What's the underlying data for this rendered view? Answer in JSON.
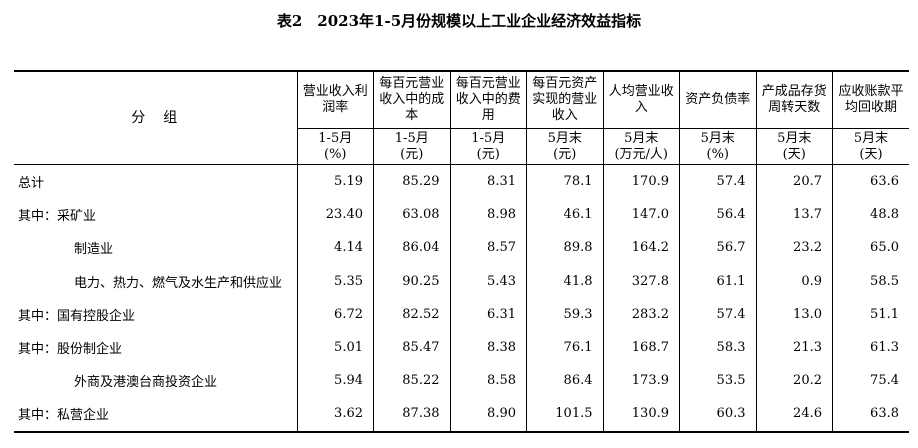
{
  "title": "表2　2023年1-5月份规模以上工业企业经济效益指标",
  "group_header": "分　组",
  "columns": [
    {
      "name": "营业收入利润率",
      "period": "1-5月",
      "unit": "(%)"
    },
    {
      "name": "每百元营业收入中的成本",
      "period": "1-5月",
      "unit": "(元)"
    },
    {
      "name": "每百元营业收入中的费用",
      "period": "1-5月",
      "unit": "(元)"
    },
    {
      "name": "每百元资产实现的营业收入",
      "period": "5月末",
      "unit": "(元)"
    },
    {
      "name": "人均营业收入",
      "period": "5月末",
      "unit": "(万元/人)"
    },
    {
      "name": "资产负债率",
      "period": "5月末",
      "unit": "(%)"
    },
    {
      "name": "产成品存货周转天数",
      "period": "5月末",
      "unit": "(天)"
    },
    {
      "name": "应收账款平均回收期",
      "period": "5月末",
      "unit": "(天)"
    }
  ],
  "rows": [
    {
      "label": "总计",
      "values": [
        "5.19",
        "85.29",
        "8.31",
        "78.1",
        "170.9",
        "57.4",
        "20.7",
        "63.6"
      ]
    },
    {
      "label": "其中：采矿业",
      "values": [
        "23.40",
        "63.08",
        "8.98",
        "46.1",
        "147.0",
        "56.4",
        "13.7",
        "48.8"
      ]
    },
    {
      "label": "制造业",
      "values": [
        "4.14",
        "86.04",
        "8.57",
        "89.8",
        "164.2",
        "56.7",
        "23.2",
        "65.0"
      ]
    },
    {
      "label": "电力、热力、燃气及水生产和供应业",
      "values": [
        "5.35",
        "90.25",
        "5.43",
        "41.8",
        "327.8",
        "61.1",
        "0.9",
        "58.5"
      ]
    },
    {
      "label": "其中：国有控股企业",
      "values": [
        "6.72",
        "82.52",
        "6.31",
        "59.3",
        "283.2",
        "57.4",
        "13.0",
        "51.1"
      ]
    },
    {
      "label": "其中：股份制企业",
      "values": [
        "5.01",
        "85.47",
        "8.38",
        "76.1",
        "168.7",
        "58.3",
        "21.3",
        "61.3"
      ]
    },
    {
      "label": "外商及港澳台商投资企业",
      "values": [
        "5.94",
        "85.22",
        "8.58",
        "86.4",
        "173.9",
        "53.5",
        "20.2",
        "75.4"
      ]
    },
    {
      "label": "其中：私营企业",
      "values": [
        "3.62",
        "87.38",
        "8.90",
        "101.5",
        "130.9",
        "60.3",
        "24.6",
        "63.8"
      ]
    }
  ]
}
